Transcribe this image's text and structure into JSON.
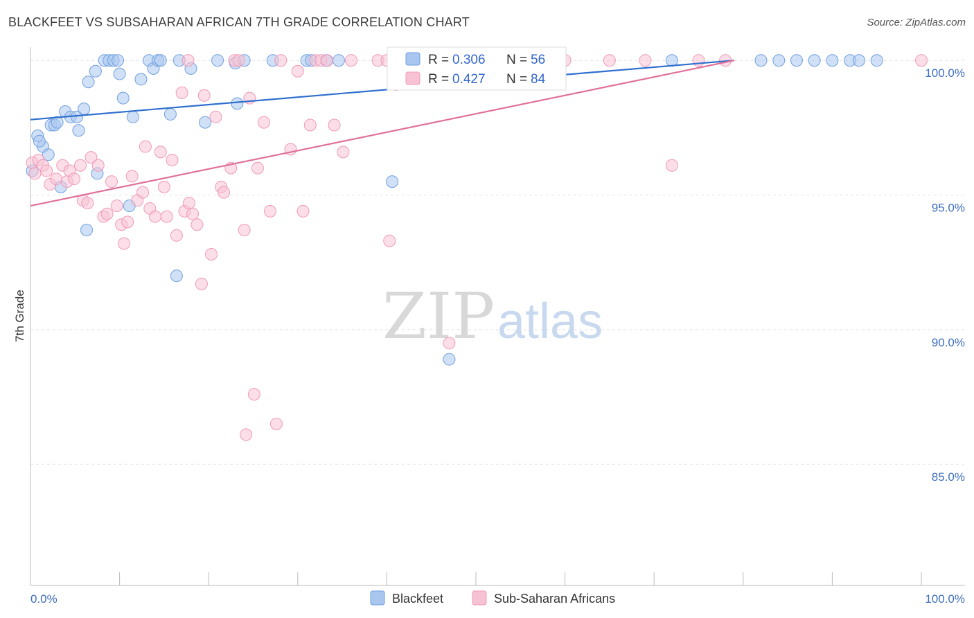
{
  "header": {
    "title": "BLACKFEET VS SUBSAHARAN AFRICAN 7TH GRADE CORRELATION CHART",
    "source": "Source: ZipAtlas.com"
  },
  "watermark": {
    "zip": "ZIP",
    "atlas": "atlas"
  },
  "correlation_legend": [
    {
      "r_label": "R =",
      "r_value": "0.306",
      "n_label": "N =",
      "n_value": "56",
      "color": "#6f9fe0"
    },
    {
      "r_label": "R =",
      "r_value": "0.427",
      "n_label": "N =",
      "n_value": "84",
      "color": "#f09ab8"
    }
  ],
  "chart_data": {
    "type": "scatter",
    "title": "BLACKFEET VS SUBSAHARAN AFRICAN 7TH GRADE CORRELATION CHART",
    "ylabel": "7th Grade",
    "xlabel": "",
    "xlim": [
      0,
      100
    ],
    "ylim": [
      80.5,
      100.7
    ],
    "x_tick_labels": [
      "0.0%",
      "100.0%"
    ],
    "y_ticks": [
      {
        "value": 100,
        "label": "100.0%"
      },
      {
        "value": 95,
        "label": "95.0%"
      },
      {
        "value": 90,
        "label": "90.0%"
      },
      {
        "value": 85,
        "label": "85.0%"
      }
    ],
    "grid": true,
    "legend_position": "bottom-center",
    "series": [
      {
        "name": "Blackfeet",
        "color": "#6f9fe0",
        "fill": "#a9c6ef",
        "trend": {
          "x": [
            0,
            79
          ],
          "y": [
            97.8,
            100.0
          ]
        },
        "points": [
          [
            0.2,
            95.9
          ],
          [
            0.8,
            97.2
          ],
          [
            1.4,
            96.8
          ],
          [
            2.0,
            96.5
          ],
          [
            2.3,
            97.6
          ],
          [
            2.7,
            97.6
          ],
          [
            3.4,
            95.3
          ],
          [
            3.9,
            98.1
          ],
          [
            4.5,
            97.9
          ],
          [
            5.2,
            97.9
          ],
          [
            5.4,
            97.4
          ],
          [
            6.0,
            98.2
          ],
          [
            6.5,
            99.2
          ],
          [
            7.3,
            99.6
          ],
          [
            7.5,
            95.8
          ],
          [
            8.3,
            100.0
          ],
          [
            8.8,
            100.0
          ],
          [
            9.3,
            100.0
          ],
          [
            9.8,
            100.0
          ],
          [
            10.0,
            99.5
          ],
          [
            10.4,
            98.6
          ],
          [
            11.1,
            94.6
          ],
          [
            12.4,
            99.3
          ],
          [
            13.3,
            100.0
          ],
          [
            13.8,
            99.7
          ],
          [
            14.3,
            100.0
          ],
          [
            14.6,
            100.0
          ],
          [
            16.4,
            92.0
          ],
          [
            16.7,
            100.0
          ],
          [
            18.0,
            99.7
          ],
          [
            19.6,
            97.7
          ],
          [
            21.0,
            100.0
          ],
          [
            23.0,
            99.9
          ],
          [
            23.2,
            98.4
          ],
          [
            24.0,
            100.0
          ],
          [
            27.2,
            100.0
          ],
          [
            31.0,
            100.0
          ],
          [
            31.5,
            100.0
          ],
          [
            33.2,
            100.0
          ],
          [
            34.6,
            100.0
          ],
          [
            40.6,
            95.5
          ],
          [
            47.0,
            88.9
          ],
          [
            6.3,
            93.7
          ],
          [
            72.0,
            100.0
          ],
          [
            82.0,
            100.0
          ],
          [
            84.0,
            100.0
          ],
          [
            86.0,
            100.0
          ],
          [
            88.0,
            100.0
          ],
          [
            90.0,
            100.0
          ],
          [
            92.0,
            100.0
          ],
          [
            93.0,
            100.0
          ],
          [
            95.0,
            100.0
          ],
          [
            1.0,
            97.0
          ],
          [
            3.0,
            97.7
          ],
          [
            11.5,
            97.9
          ],
          [
            15.7,
            98.0
          ]
        ]
      },
      {
        "name": "Sub-Saharan Africans",
        "color": "#f09ab8",
        "fill": "#f7c3d4",
        "trend": {
          "x": [
            0,
            79
          ],
          "y": [
            94.6,
            100.0
          ]
        },
        "points": [
          [
            0.2,
            96.2
          ],
          [
            0.9,
            96.3
          ],
          [
            1.4,
            96.1
          ],
          [
            1.8,
            95.9
          ],
          [
            2.2,
            95.4
          ],
          [
            2.9,
            95.6
          ],
          [
            3.6,
            96.1
          ],
          [
            4.1,
            95.5
          ],
          [
            4.4,
            95.9
          ],
          [
            4.9,
            95.6
          ],
          [
            5.6,
            96.1
          ],
          [
            5.9,
            94.8
          ],
          [
            6.4,
            94.7
          ],
          [
            6.8,
            96.4
          ],
          [
            7.6,
            96.1
          ],
          [
            8.2,
            94.2
          ],
          [
            8.6,
            94.3
          ],
          [
            9.1,
            95.5
          ],
          [
            9.7,
            94.6
          ],
          [
            10.2,
            93.9
          ],
          [
            10.5,
            93.2
          ],
          [
            10.9,
            94.0
          ],
          [
            11.4,
            95.7
          ],
          [
            12.0,
            94.8
          ],
          [
            12.6,
            95.1
          ],
          [
            12.9,
            96.8
          ],
          [
            13.4,
            94.5
          ],
          [
            14.0,
            94.2
          ],
          [
            14.6,
            96.6
          ],
          [
            15.0,
            95.3
          ],
          [
            15.3,
            94.2
          ],
          [
            15.9,
            96.3
          ],
          [
            16.4,
            93.5
          ],
          [
            17.0,
            98.8
          ],
          [
            17.3,
            94.4
          ],
          [
            17.8,
            94.7
          ],
          [
            18.2,
            94.3
          ],
          [
            18.7,
            93.9
          ],
          [
            19.2,
            91.7
          ],
          [
            19.5,
            98.7
          ],
          [
            20.3,
            92.8
          ],
          [
            20.8,
            97.9
          ],
          [
            21.4,
            95.3
          ],
          [
            21.7,
            95.1
          ],
          [
            22.5,
            96.0
          ],
          [
            22.9,
            100.0
          ],
          [
            23.4,
            100.0
          ],
          [
            24.0,
            93.7
          ],
          [
            24.6,
            98.6
          ],
          [
            25.1,
            87.6
          ],
          [
            25.5,
            96.0
          ],
          [
            26.2,
            97.7
          ],
          [
            26.9,
            94.4
          ],
          [
            27.6,
            86.5
          ],
          [
            28.1,
            100.0
          ],
          [
            29.2,
            96.7
          ],
          [
            30.0,
            99.6
          ],
          [
            30.6,
            94.4
          ],
          [
            31.4,
            97.6
          ],
          [
            32.0,
            100.0
          ],
          [
            32.6,
            100.0
          ],
          [
            33.3,
            100.0
          ],
          [
            34.1,
            97.6
          ],
          [
            35.1,
            96.6
          ],
          [
            36.0,
            100.0
          ],
          [
            39.0,
            100.0
          ],
          [
            40.0,
            100.0
          ],
          [
            40.3,
            93.3
          ],
          [
            41.0,
            99.1
          ],
          [
            42.0,
            100.0
          ],
          [
            47.0,
            89.5
          ],
          [
            48.0,
            100.0
          ],
          [
            50.0,
            100.0
          ],
          [
            56.0,
            100.0
          ],
          [
            60.0,
            100.0
          ],
          [
            65.0,
            100.0
          ],
          [
            69.0,
            100.0
          ],
          [
            72.0,
            96.1
          ],
          [
            75.0,
            100.0
          ],
          [
            78.0,
            100.0
          ],
          [
            24.2,
            86.1
          ],
          [
            17.7,
            100.0
          ],
          [
            100.0,
            100.0
          ],
          [
            0.5,
            95.8
          ]
        ]
      }
    ]
  },
  "legend": {
    "items": [
      {
        "label": "Blackfeet",
        "color": "#6f9fe0"
      },
      {
        "label": "Sub-Saharan Africans",
        "color": "#f09ab8"
      }
    ]
  }
}
